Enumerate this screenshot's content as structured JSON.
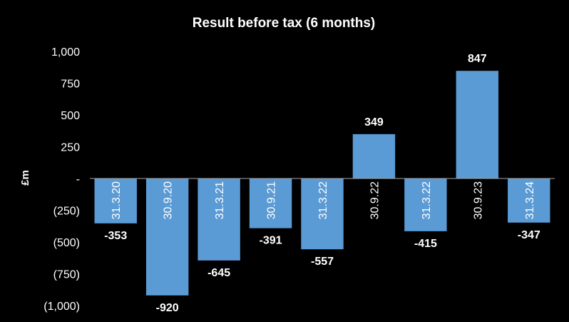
{
  "chart_data": {
    "type": "bar",
    "title": "Result before tax (6 months)",
    "ylabel": "£m",
    "xlabel": "",
    "categories": [
      "31.3.20",
      "30.9.20",
      "31.3.21",
      "30.9.21",
      "31.3.22",
      "30.9.22",
      "31.3.22",
      "30.9.23",
      "31.3.24"
    ],
    "values": [
      -353,
      -920,
      -645,
      -391,
      -557,
      349,
      -415,
      847,
      -347
    ],
    "data_labels": [
      "-353",
      "-920",
      "-645",
      "-391",
      "-557",
      "349",
      "-415",
      "847",
      "-347"
    ],
    "ylim": [
      -1000,
      1000
    ],
    "yticks": [
      {
        "value": 1000,
        "label": "1,000"
      },
      {
        "value": 750,
        "label": "750"
      },
      {
        "value": 500,
        "label": "500"
      },
      {
        "value": 250,
        "label": "250"
      },
      {
        "value": 0,
        "label": "-"
      },
      {
        "value": -250,
        "label": "(250)"
      },
      {
        "value": -500,
        "label": "(500)"
      },
      {
        "value": -750,
        "label": "(750)"
      },
      {
        "value": -1000,
        "label": "(1,000)"
      }
    ],
    "grid": false,
    "legend": "none",
    "bar_color": "#5b9bd5",
    "background": "#000000",
    "text_color": "#ffffff",
    "axis_color": "#a6a6a6"
  }
}
